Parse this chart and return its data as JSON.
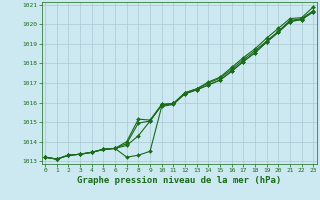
{
  "title": "Graphe pression niveau de la mer (hPa)",
  "bg_color": "#cce8f0",
  "grid_color": "#aac8d4",
  "line_color": "#1a6b1a",
  "xlim_min": -0.3,
  "xlim_max": 23.3,
  "ylim_min": 1012.85,
  "ylim_max": 1021.15,
  "xticks": [
    0,
    1,
    2,
    3,
    4,
    5,
    6,
    7,
    8,
    9,
    10,
    11,
    12,
    13,
    14,
    15,
    16,
    17,
    18,
    19,
    20,
    21,
    22,
    23
  ],
  "yticks": [
    1013,
    1014,
    1015,
    1016,
    1017,
    1018,
    1019,
    1020,
    1021
  ],
  "series": [
    [
      1013.2,
      1013.1,
      1013.3,
      1013.35,
      1013.45,
      1013.6,
      1013.65,
      1013.2,
      1013.3,
      1013.5,
      1015.8,
      1015.9,
      1016.45,
      1016.65,
      1016.9,
      1017.15,
      1017.6,
      1018.1,
      1018.55,
      1019.1,
      1019.6,
      1020.15,
      1020.25,
      1020.65
    ],
    [
      1013.2,
      1013.1,
      1013.3,
      1013.35,
      1013.45,
      1013.6,
      1013.65,
      1013.8,
      1014.3,
      1015.05,
      1015.85,
      1015.95,
      1016.45,
      1016.65,
      1016.9,
      1017.15,
      1017.6,
      1018.1,
      1018.55,
      1019.1,
      1019.6,
      1020.15,
      1020.25,
      1020.65
    ],
    [
      1013.2,
      1013.1,
      1013.3,
      1013.35,
      1013.45,
      1013.6,
      1013.65,
      1013.9,
      1014.95,
      1015.05,
      1015.9,
      1015.95,
      1016.5,
      1016.7,
      1017.0,
      1017.25,
      1017.7,
      1018.2,
      1018.65,
      1019.15,
      1019.65,
      1020.2,
      1020.3,
      1020.7
    ],
    [
      1013.2,
      1013.1,
      1013.3,
      1013.35,
      1013.45,
      1013.6,
      1013.65,
      1014.0,
      1015.15,
      1015.1,
      1015.9,
      1015.95,
      1016.5,
      1016.7,
      1017.05,
      1017.3,
      1017.8,
      1018.3,
      1018.75,
      1019.3,
      1019.8,
      1020.3,
      1020.35,
      1020.9
    ]
  ],
  "marker": "D",
  "marker_size": 2.0,
  "linewidth": 0.8,
  "title_fontsize": 6.5,
  "tick_fontsize": 4.5,
  "xlabel_pad": 2
}
